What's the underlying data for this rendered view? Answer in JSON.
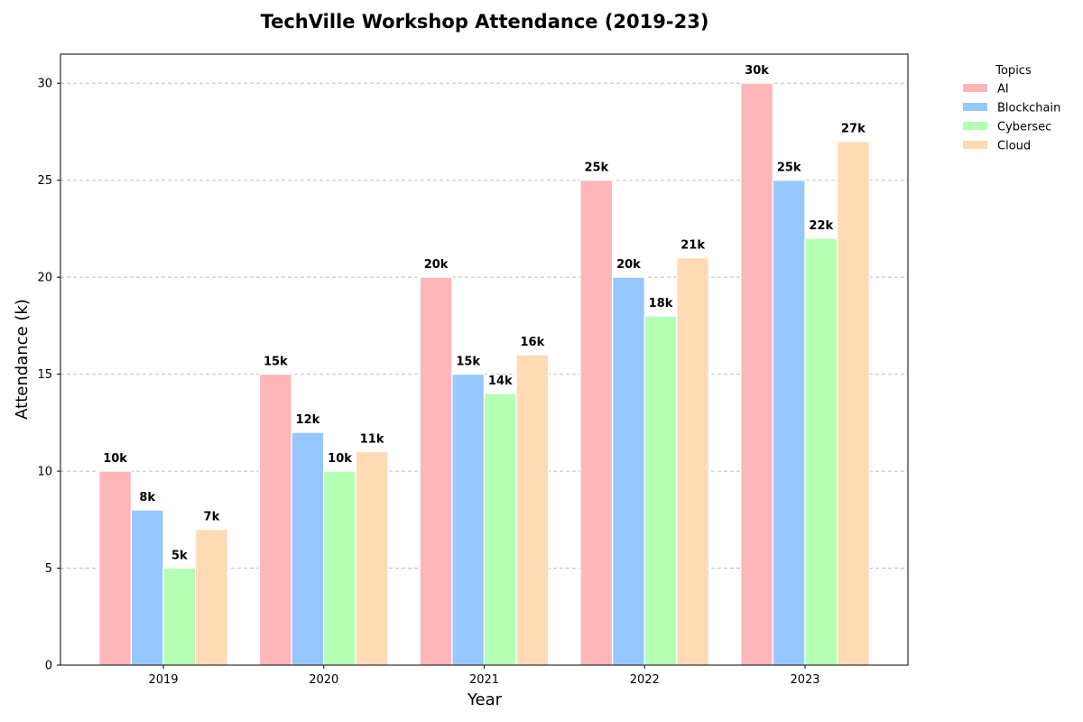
{
  "chart_data": {
    "type": "bar",
    "title": "TechVille Workshop Attendance (2019-23)",
    "xlabel": "Year",
    "ylabel": "Attendance (k)",
    "categories": [
      "2019",
      "2020",
      "2021",
      "2022",
      "2023"
    ],
    "ylim": [
      0,
      31.5
    ],
    "yticks": [
      0,
      5,
      10,
      15,
      20,
      25,
      30
    ],
    "grid": "y-dashed",
    "legend": {
      "title": "Topics",
      "placement": "outside-top-right"
    },
    "label_suffix": "k",
    "series": [
      {
        "name": "AI",
        "color": "#ffb6b9",
        "values": [
          10,
          15,
          20,
          25,
          30
        ]
      },
      {
        "name": "Blockchain",
        "color": "#96c8ff",
        "values": [
          8,
          12,
          15,
          20,
          25
        ]
      },
      {
        "name": "Cybersec",
        "color": "#b4ffb4",
        "values": [
          5,
          10,
          14,
          18,
          22
        ]
      },
      {
        "name": "Cloud",
        "color": "#ffdab5",
        "values": [
          7,
          11,
          16,
          21,
          27
        ]
      }
    ]
  }
}
